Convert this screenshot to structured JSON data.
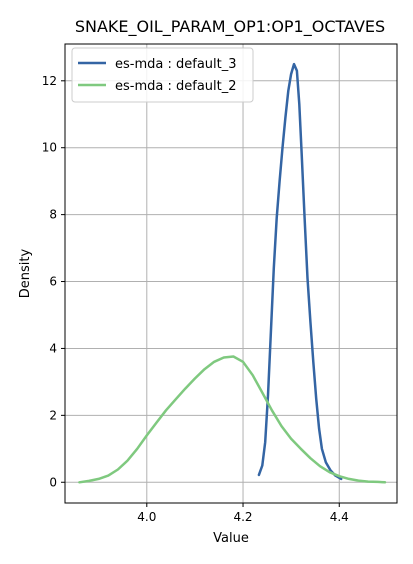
{
  "chart_data": {
    "type": "line",
    "title": "SNAKE_OIL_PARAM_OP1:OP1_OCTAVES",
    "xlabel": "Value",
    "ylabel": "Density",
    "xlim": [
      3.83,
      4.52
    ],
    "ylim": [
      -0.62,
      13.1
    ],
    "x_ticks": [
      4.0,
      4.2,
      4.4
    ],
    "x_tick_labels": [
      "4.0",
      "4.2",
      "4.4"
    ],
    "y_ticks": [
      0,
      2,
      4,
      6,
      8,
      10,
      12
    ],
    "y_tick_labels": [
      "0",
      "2",
      "4",
      "6",
      "8",
      "10",
      "12"
    ],
    "grid": true,
    "legend_position": "top-left",
    "series": [
      {
        "name": "es-mda : default_3",
        "color": "#3465a4",
        "points": [
          [
            4.233,
            0.22
          ],
          [
            4.24,
            0.5
          ],
          [
            4.246,
            1.2
          ],
          [
            4.252,
            2.6
          ],
          [
            4.258,
            4.5
          ],
          [
            4.264,
            6.4
          ],
          [
            4.27,
            7.9
          ],
          [
            4.276,
            9.0
          ],
          [
            4.282,
            10.0
          ],
          [
            4.288,
            10.9
          ],
          [
            4.294,
            11.7
          ],
          [
            4.3,
            12.2
          ],
          [
            4.306,
            12.5
          ],
          [
            4.312,
            12.3
          ],
          [
            4.317,
            11.3
          ],
          [
            4.322,
            9.8
          ],
          [
            4.328,
            7.9
          ],
          [
            4.334,
            6.1
          ],
          [
            4.34,
            4.8
          ],
          [
            4.346,
            3.6
          ],
          [
            4.352,
            2.5
          ],
          [
            4.358,
            1.6
          ],
          [
            4.364,
            1.0
          ],
          [
            4.372,
            0.6
          ],
          [
            4.382,
            0.35
          ],
          [
            4.392,
            0.2
          ],
          [
            4.404,
            0.1
          ]
        ]
      },
      {
        "name": "es-mda : default_2",
        "color": "#7fc97f",
        "points": [
          [
            3.86,
            0.0
          ],
          [
            3.88,
            0.04
          ],
          [
            3.9,
            0.1
          ],
          [
            3.92,
            0.2
          ],
          [
            3.94,
            0.38
          ],
          [
            3.96,
            0.65
          ],
          [
            3.98,
            1.0
          ],
          [
            4.0,
            1.4
          ],
          [
            4.02,
            1.78
          ],
          [
            4.04,
            2.15
          ],
          [
            4.06,
            2.48
          ],
          [
            4.08,
            2.8
          ],
          [
            4.1,
            3.1
          ],
          [
            4.12,
            3.38
          ],
          [
            4.14,
            3.6
          ],
          [
            4.16,
            3.73
          ],
          [
            4.18,
            3.76
          ],
          [
            4.2,
            3.6
          ],
          [
            4.22,
            3.2
          ],
          [
            4.24,
            2.68
          ],
          [
            4.26,
            2.15
          ],
          [
            4.28,
            1.68
          ],
          [
            4.3,
            1.3
          ],
          [
            4.32,
            1.0
          ],
          [
            4.34,
            0.72
          ],
          [
            4.36,
            0.48
          ],
          [
            4.38,
            0.3
          ],
          [
            4.4,
            0.18
          ],
          [
            4.42,
            0.1
          ],
          [
            4.44,
            0.05
          ],
          [
            4.46,
            0.02
          ],
          [
            4.48,
            0.01
          ],
          [
            4.495,
            0.0
          ]
        ]
      }
    ]
  }
}
